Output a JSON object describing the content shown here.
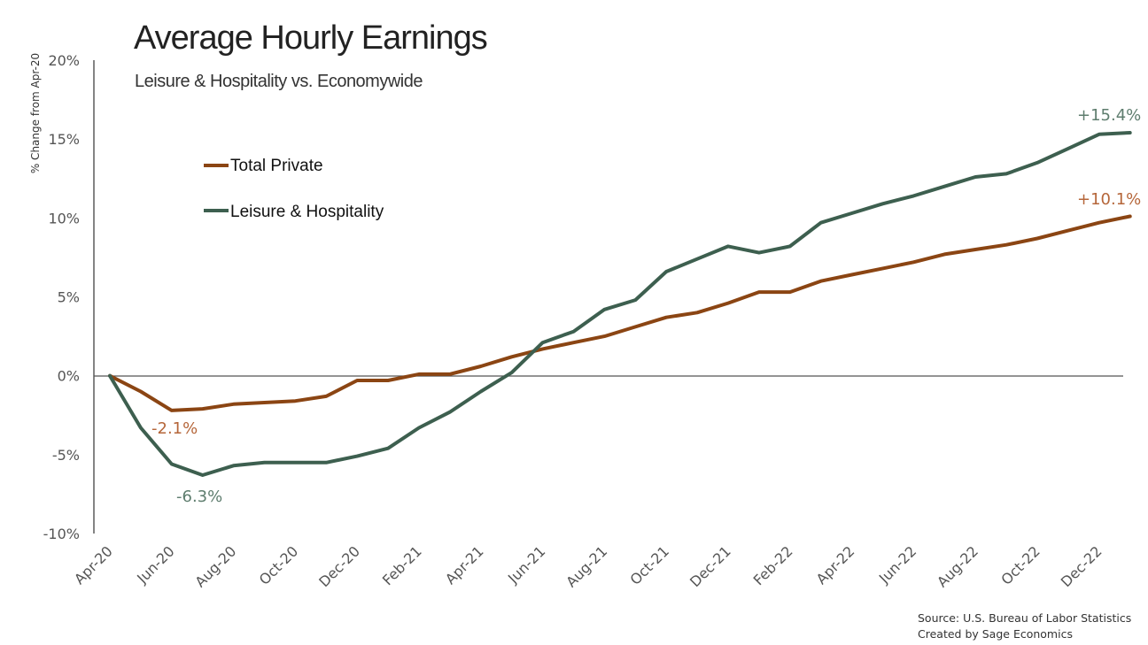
{
  "chart_data": {
    "type": "line",
    "title": "Average Hourly Earnings",
    "subtitle": "Leisure & Hospitality vs. Economywide",
    "xlabel": "",
    "ylabel": "% Change from Apr-20",
    "ylim": [
      -10,
      20
    ],
    "y_ticks": [
      -10,
      -5,
      0,
      5,
      10,
      15,
      20
    ],
    "y_tick_labels": [
      "-10%",
      "-5%",
      "0%",
      "5%",
      "10%",
      "15%",
      "20%"
    ],
    "x": [
      "Apr-20",
      "May-20",
      "Jun-20",
      "Jul-20",
      "Aug-20",
      "Sep-20",
      "Oct-20",
      "Nov-20",
      "Dec-20",
      "Jan-21",
      "Feb-21",
      "Mar-21",
      "Apr-21",
      "May-21",
      "Jun-21",
      "Jul-21",
      "Aug-21",
      "Sep-21",
      "Oct-21",
      "Nov-21",
      "Dec-21",
      "Jan-22",
      "Feb-22",
      "Mar-22",
      "Apr-22",
      "May-22",
      "Jun-22",
      "Jul-22",
      "Aug-22",
      "Sep-22",
      "Oct-22",
      "Nov-22",
      "Dec-22",
      "Jan-23"
    ],
    "x_tick_labels": [
      "Apr-20",
      "Jun-20",
      "Aug-20",
      "Oct-20",
      "Dec-20",
      "Feb-21",
      "Apr-21",
      "Jun-21",
      "Aug-21",
      "Oct-21",
      "Dec-21",
      "Feb-22",
      "Apr-22",
      "Jun-22",
      "Aug-22",
      "Oct-22",
      "Dec-22"
    ],
    "grid": false,
    "legend_position": "upper-left",
    "series": [
      {
        "name": "Total Private",
        "color": "#8B4513",
        "values": [
          0,
          -1.0,
          -2.2,
          -2.1,
          -1.8,
          -1.7,
          -1.6,
          -1.3,
          -0.3,
          -0.3,
          0.1,
          0.1,
          0.6,
          1.2,
          1.7,
          2.1,
          2.5,
          3.1,
          3.7,
          4.0,
          4.6,
          5.3,
          5.3,
          6.0,
          6.4,
          6.8,
          7.2,
          7.7,
          8.0,
          8.3,
          8.7,
          9.2,
          9.7,
          10.1
        ]
      },
      {
        "name": "Leisure & Hospitality",
        "color": "#3D5F4F",
        "values": [
          0,
          -3.3,
          -5.6,
          -6.3,
          -5.7,
          -5.5,
          -5.5,
          -5.5,
          -5.1,
          -4.6,
          -3.3,
          -2.3,
          -1.0,
          0.2,
          2.1,
          2.8,
          4.2,
          4.8,
          6.6,
          7.4,
          8.2,
          7.8,
          8.2,
          9.7,
          10.3,
          10.9,
          11.4,
          12.0,
          12.6,
          12.8,
          13.5,
          14.4,
          15.3,
          15.4
        ]
      }
    ],
    "annotations": [
      {
        "text": "-2.1%",
        "series": "Total Private",
        "x": "Jul-20",
        "y": -2.1,
        "color": "#B5663A"
      },
      {
        "text": "-6.3%",
        "series": "Leisure & Hospitality",
        "x": "Jul-20",
        "y": -6.3,
        "color": "#5E7D6E"
      },
      {
        "text": "+10.1%",
        "series": "Total Private",
        "x": "Jan-23",
        "y": 10.1,
        "color": "#B5663A"
      },
      {
        "text": "+15.4%",
        "series": "Leisure & Hospitality",
        "x": "Jan-23",
        "y": 15.4,
        "color": "#5E7D6E"
      }
    ]
  },
  "source": {
    "line1": "Source: U.S. Bureau of Labor Statistics",
    "line2": "Created by Sage Economics"
  }
}
